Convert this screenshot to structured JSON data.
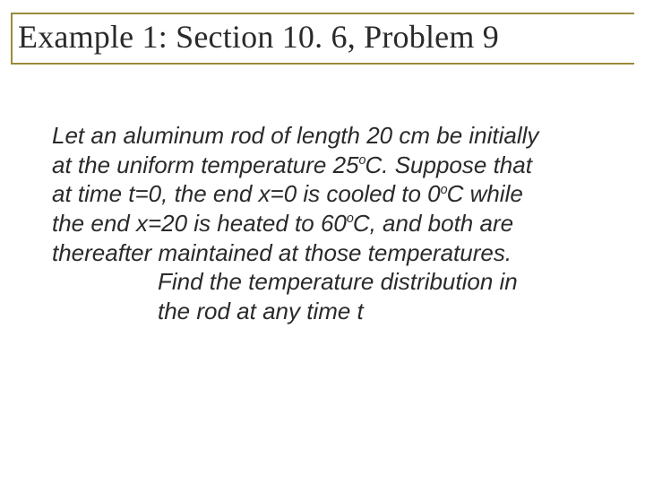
{
  "colors": {
    "title_text": "#2a2a2a",
    "title_border": "#9a8a3a",
    "body_text": "#2a2a2a",
    "background": "#ffffff"
  },
  "typography": {
    "title_font": "Times New Roman",
    "title_fontsize_pt": 27,
    "body_font": "Arial",
    "body_fontsize_pt": 20,
    "body_italic": true
  },
  "title": "Example 1:  Section 10. 6, Problem 9",
  "body": {
    "l1": "Let an aluminum rod of length 20 cm be initially",
    "l2a": "at the uniform temperature 25",
    "l2b": "C.  Suppose that",
    "l3a": "at time t=0, the end x=0 is cooled to 0",
    "l3b": "C while",
    "l4a": "the end x=20 is heated to 60",
    "l4b": "C, and both are",
    "l5": "thereafter maintained at those temperatures.",
    "s1": "Find the temperature distribution in",
    "s2": "the rod at any time t"
  },
  "degree": "o"
}
